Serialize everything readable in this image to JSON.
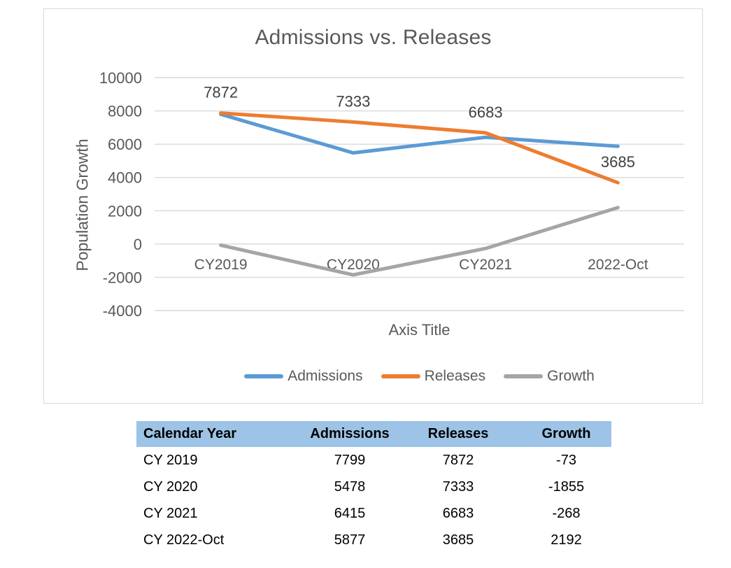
{
  "chart_data": {
    "type": "line",
    "title": "Admissions vs. Releases",
    "xlabel": "Axis Title",
    "ylabel": "Population Growth",
    "categories": [
      "CY2019",
      "CY2020",
      "CY2021",
      "2022-Oct"
    ],
    "ylim": [
      -4000,
      10000
    ],
    "yticks": [
      10000,
      8000,
      6000,
      4000,
      2000,
      0,
      -2000,
      -4000
    ],
    "grid": true,
    "legend_position": "bottom",
    "series": [
      {
        "name": "Admissions",
        "color": "#5B9BD5",
        "values": [
          7799,
          5478,
          6415,
          5877
        ],
        "data_labels": false
      },
      {
        "name": "Releases",
        "color": "#ED7D31",
        "values": [
          7872,
          7333,
          6683,
          3685
        ],
        "data_labels": true
      },
      {
        "name": "Growth",
        "color": "#A5A5A5",
        "values": [
          -73,
          -1855,
          -268,
          2192
        ],
        "data_labels": false
      }
    ],
    "colors": {
      "gridline": "#D9D9D9",
      "chart_border": "#D9D9D9",
      "axis_text": "#595959",
      "data_label_text": "#404040"
    }
  },
  "table": {
    "header_bg": "#9DC3E6",
    "headers": [
      "Calendar Year",
      "Admissions",
      "Releases",
      "Growth"
    ],
    "rows": [
      [
        "CY 2019",
        "7799",
        "7872",
        "-73"
      ],
      [
        "CY 2020",
        "5478",
        "7333",
        "-1855"
      ],
      [
        "CY 2021",
        "6415",
        "6683",
        "-268"
      ],
      [
        "CY 2022-Oct",
        "5877",
        "3685",
        "2192"
      ]
    ]
  }
}
